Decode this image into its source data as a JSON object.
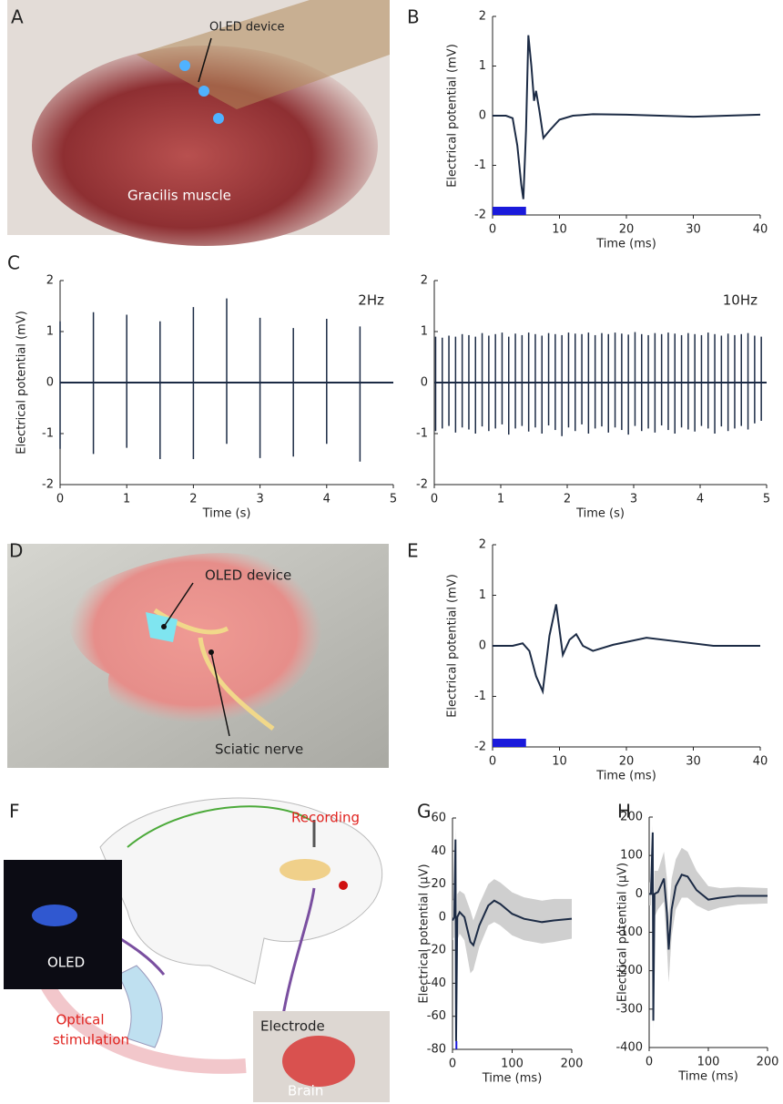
{
  "panel_labels": [
    "A",
    "B",
    "C",
    "D",
    "E",
    "F",
    "G",
    "H"
  ],
  "photo_texts": {
    "a": [
      "OLED device",
      "Gracilis muscle"
    ],
    "d": [
      "OLED device",
      "Sciatic nerve"
    ],
    "f": [
      "Recording",
      "OLED",
      "Optical",
      "stimulation",
      "Electrode",
      "Brain"
    ]
  },
  "chart_data": [
    {
      "type": "line",
      "xlabel": "Time (ms)",
      "ylabel": "Electrical potential (mV)",
      "x": [
        0,
        2,
        3,
        3.7,
        4.3,
        4.6,
        5.0,
        5.35,
        5.8,
        6.2,
        6.5,
        7,
        7.6,
        8.5,
        10,
        12,
        15,
        20,
        25,
        30,
        35,
        40
      ],
      "values": [
        0,
        0,
        -0.05,
        -0.6,
        -1.4,
        -1.68,
        -0.3,
        1.62,
        1.0,
        0.3,
        0.5,
        0.1,
        -0.45,
        -0.3,
        -0.08,
        0,
        0.03,
        0.02,
        0,
        -0.02,
        0,
        0.02
      ],
      "color": "#1c2b45",
      "stimulus": {
        "start": 0,
        "end": 5,
        "color": "#1a1adb"
      },
      "xlim": [
        0,
        40
      ],
      "xticks": [
        0,
        10,
        20,
        30,
        40
      ],
      "ylim": [
        -2,
        2
      ],
      "yticks": [
        -2,
        -1,
        0,
        1,
        2
      ]
    },
    {
      "type": "spikes",
      "xlabel": "Time (s)",
      "ylabel": "Electrical potential (mV)",
      "annotation": "2Hz",
      "x": [
        0,
        0.5,
        1,
        1.5,
        2,
        2.5,
        3,
        3.5,
        4,
        4.5
      ],
      "peaks": [
        1.2,
        1.38,
        1.33,
        1.2,
        1.48,
        1.65,
        1.27,
        1.07,
        1.25,
        1.1
      ],
      "troughs": [
        -1.3,
        -1.4,
        -1.28,
        -1.5,
        -1.5,
        -1.2,
        -1.48,
        -1.45,
        -1.2,
        -1.55
      ],
      "color": "#1c2b45",
      "xlim": [
        0,
        5
      ],
      "xticks": [
        0,
        1,
        2,
        3,
        4,
        5
      ],
      "ylim": [
        -2,
        2
      ],
      "yticks": [
        -2,
        -1,
        0,
        1,
        2
      ]
    },
    {
      "type": "spikes",
      "xlabel": "Time (s)",
      "annotation": "10Hz",
      "x": [
        0.02,
        0.12,
        0.22,
        0.32,
        0.42,
        0.52,
        0.62,
        0.72,
        0.82,
        0.92,
        1.02,
        1.12,
        1.22,
        1.32,
        1.42,
        1.52,
        1.62,
        1.72,
        1.82,
        1.92,
        2.02,
        2.12,
        2.22,
        2.32,
        2.42,
        2.52,
        2.62,
        2.72,
        2.82,
        2.92,
        3.02,
        3.12,
        3.22,
        3.32,
        3.42,
        3.52,
        3.62,
        3.72,
        3.82,
        3.92,
        4.02,
        4.12,
        4.22,
        4.32,
        4.42,
        4.52,
        4.62,
        4.72,
        4.82,
        4.92
      ],
      "peaks": [
        0.9,
        0.88,
        0.92,
        0.9,
        0.95,
        0.93,
        0.9,
        0.97,
        0.92,
        0.95,
        0.98,
        0.9,
        0.96,
        0.93,
        0.98,
        0.95,
        0.92,
        0.97,
        0.95,
        0.93,
        0.98,
        0.96,
        0.95,
        0.98,
        0.93,
        0.97,
        0.95,
        0.98,
        0.96,
        0.94,
        0.99,
        0.95,
        0.93,
        0.97,
        0.95,
        0.98,
        0.96,
        0.93,
        0.97,
        0.95,
        0.93,
        0.98,
        0.95,
        0.92,
        0.96,
        0.93,
        0.95,
        0.97,
        0.92,
        0.9
      ],
      "troughs": [
        -0.95,
        -0.9,
        -0.85,
        -0.98,
        -0.88,
        -0.92,
        -1.0,
        -0.86,
        -0.95,
        -0.9,
        -0.82,
        -1.02,
        -0.9,
        -0.85,
        -0.96,
        -0.88,
        -1.0,
        -0.84,
        -0.93,
        -1.05,
        -0.88,
        -0.95,
        -0.82,
        -1.0,
        -0.9,
        -0.86,
        -0.98,
        -0.88,
        -0.93,
        -1.02,
        -0.85,
        -0.95,
        -0.9,
        -0.98,
        -0.84,
        -0.93,
        -1.0,
        -0.88,
        -0.92,
        -0.96,
        -0.85,
        -0.9,
        -1.0,
        -0.86,
        -0.95,
        -0.9,
        -0.85,
        -0.92,
        -0.8,
        -0.75
      ],
      "color": "#1c2b45",
      "xlim": [
        0,
        5
      ],
      "xticks": [
        0,
        1,
        2,
        3,
        4,
        5
      ],
      "ylim": [
        -2,
        2
      ],
      "yticks": [
        -2,
        -1,
        0,
        1,
        2
      ]
    },
    {
      "type": "line",
      "xlabel": "Time (ms)",
      "ylabel": "Electrical potential (mV)",
      "x": [
        0,
        3,
        4.5,
        5.5,
        6.5,
        7.5,
        8.5,
        9.5,
        10.5,
        11.5,
        12.5,
        13.5,
        15,
        18,
        23,
        28,
        33,
        40
      ],
      "values": [
        0,
        0,
        0.05,
        -0.1,
        -0.6,
        -0.9,
        0.2,
        0.82,
        -0.18,
        0.12,
        0.23,
        0.0,
        -0.1,
        0.02,
        0.16,
        0.08,
        0,
        0
      ],
      "color": "#1c2b45",
      "stimulus": {
        "start": 0,
        "end": 5,
        "color": "#1a1adb"
      },
      "xlim": [
        0,
        40
      ],
      "xticks": [
        0,
        10,
        20,
        30,
        40
      ],
      "ylim": [
        -2,
        2
      ],
      "yticks": [
        -2,
        -1,
        0,
        1,
        2
      ]
    },
    {
      "type": "band",
      "xlabel": "Time (ms)",
      "ylabel": "Electrical potential (μV)",
      "x": [
        0,
        3,
        5,
        6,
        8,
        12,
        20,
        30,
        35,
        45,
        60,
        70,
        80,
        100,
        120,
        150,
        170,
        200
      ],
      "values": [
        -2,
        0,
        47,
        -75,
        0,
        3,
        0,
        -15,
        -17,
        -5,
        7,
        10,
        8,
        2,
        -1,
        -3,
        -2,
        -1
      ],
      "lower": [
        -14,
        -12,
        35,
        -80,
        -14,
        -10,
        -14,
        -34,
        -32,
        -18,
        -5,
        -3,
        -5,
        -11,
        -14,
        -16,
        -15,
        -13
      ],
      "upper": [
        10,
        12,
        55,
        -60,
        14,
        16,
        14,
        4,
        -2,
        8,
        20,
        23,
        21,
        15,
        12,
        10,
        11,
        11
      ],
      "color": "#1c2b45",
      "band_color": "#cfcfcf",
      "stimulus": {
        "start": 5,
        "end": 8,
        "color": "#1a1adb"
      },
      "xlim": [
        0,
        200
      ],
      "xticks": [
        0,
        100,
        200
      ],
      "ylim": [
        -80,
        60
      ],
      "yticks": [
        -80,
        -60,
        -40,
        -20,
        0,
        20,
        40,
        60
      ]
    },
    {
      "type": "band",
      "xlabel": "Time (ms)",
      "ylabel": "Electrical potential (μV)",
      "x": [
        0,
        3,
        6,
        7,
        9,
        15,
        25,
        30,
        33,
        38,
        45,
        55,
        65,
        80,
        100,
        120,
        150,
        200
      ],
      "values": [
        0,
        0,
        160,
        -330,
        0,
        5,
        40,
        -50,
        -145,
        -40,
        20,
        50,
        45,
        10,
        -15,
        -10,
        -5,
        -5
      ],
      "lower": [
        -30,
        -30,
        120,
        -360,
        -60,
        -40,
        -20,
        -140,
        -230,
        -110,
        -40,
        -10,
        -10,
        -30,
        -45,
        -35,
        -28,
        -25
      ],
      "upper": [
        30,
        30,
        180,
        -300,
        60,
        60,
        110,
        40,
        -60,
        40,
        90,
        120,
        110,
        60,
        20,
        15,
        18,
        15
      ],
      "color": "#1c2b45",
      "band_color": "#cfcfcf",
      "xlim": [
        0,
        200
      ],
      "xticks": [
        0,
        100,
        200
      ],
      "ylim": [
        -400,
        200
      ],
      "yticks": [
        -400,
        -300,
        -200,
        -100,
        0,
        100,
        200
      ]
    }
  ]
}
